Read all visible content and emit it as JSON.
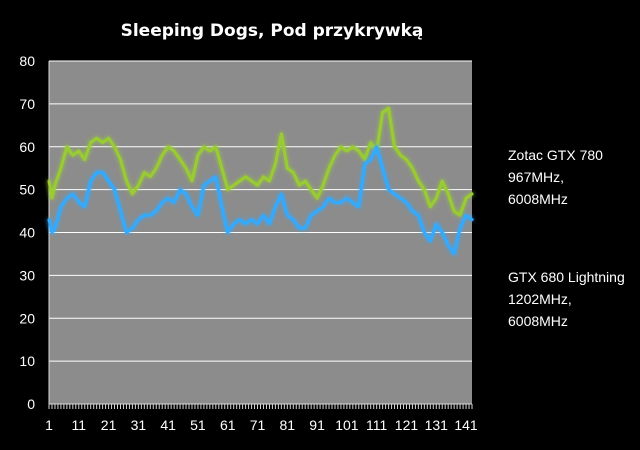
{
  "chart_data": {
    "type": "line",
    "title": "Sleeping Dogs, Pod przykrywką",
    "xlabel": "",
    "ylabel": "",
    "xlim": [
      1,
      143
    ],
    "ylim": [
      0,
      80
    ],
    "y_ticks": [
      "0",
      "10",
      "20",
      "30",
      "40",
      "50",
      "60",
      "70",
      "80"
    ],
    "x_ticks": [
      "1",
      "11",
      "21",
      "31",
      "41",
      "51",
      "61",
      "71",
      "81",
      "91",
      "101",
      "111",
      "121",
      "131",
      "141"
    ],
    "x_tick_values": [
      1,
      11,
      21,
      31,
      41,
      51,
      61,
      71,
      81,
      91,
      101,
      111,
      121,
      131,
      141
    ],
    "grid": true,
    "legend_position": "right",
    "plot_background": "#8c8c8c",
    "series": [
      {
        "name": "Zotac GTX 780 967MHz, 6008MHz",
        "legend_lines": [
          "Zotac GTX 780",
          "967MHz,",
          "6008MHz"
        ],
        "color": "#99cc33",
        "x": [
          1,
          2,
          3,
          5,
          7,
          9,
          11,
          13,
          15,
          17,
          19,
          21,
          23,
          25,
          27,
          29,
          31,
          33,
          35,
          37,
          39,
          41,
          43,
          45,
          47,
          49,
          51,
          53,
          55,
          57,
          59,
          61,
          63,
          65,
          67,
          69,
          71,
          73,
          75,
          77,
          79,
          81,
          83,
          85,
          87,
          89,
          91,
          93,
          95,
          97,
          99,
          101,
          103,
          105,
          107,
          109,
          111,
          113,
          115,
          117,
          119,
          121,
          123,
          125,
          127,
          129,
          131,
          133,
          135,
          137,
          139,
          141,
          143
        ],
        "values": [
          52,
          48,
          51,
          55,
          60,
          58,
          59,
          57,
          61,
          62,
          61,
          62,
          60,
          57,
          52,
          49,
          51,
          54,
          53,
          55,
          58,
          60,
          59,
          57,
          55,
          52,
          58,
          60,
          59,
          60,
          55,
          50,
          51,
          52,
          53,
          52,
          51,
          53,
          52,
          56,
          63,
          55,
          54,
          51,
          52,
          50,
          48,
          51,
          55,
          58,
          60,
          59,
          60,
          59,
          57,
          61,
          59,
          68,
          69,
          60,
          58,
          57,
          55,
          52,
          50,
          46,
          48,
          52,
          49,
          45,
          44,
          48,
          49
        ]
      },
      {
        "name": "GTX 680 Lightning 1202MHz, 6008MHz",
        "legend_lines": [
          "GTX 680 Lightning",
          "1202MHz,",
          "6008MHz"
        ],
        "color": "#33aaff",
        "x": [
          1,
          2,
          3,
          5,
          7,
          9,
          11,
          13,
          15,
          17,
          19,
          21,
          23,
          25,
          27,
          29,
          31,
          33,
          35,
          37,
          39,
          41,
          43,
          45,
          47,
          49,
          51,
          53,
          55,
          57,
          59,
          61,
          63,
          65,
          67,
          69,
          71,
          73,
          75,
          77,
          79,
          81,
          83,
          85,
          87,
          89,
          91,
          93,
          95,
          97,
          99,
          101,
          103,
          105,
          107,
          109,
          111,
          113,
          115,
          117,
          119,
          121,
          123,
          125,
          127,
          129,
          131,
          133,
          135,
          137,
          139,
          141,
          143
        ],
        "values": [
          43,
          40,
          41,
          46,
          48,
          49,
          47,
          46,
          52,
          54,
          54,
          52,
          50,
          45,
          40,
          41,
          43,
          44,
          44,
          45,
          47,
          48,
          47,
          50,
          49,
          46,
          44,
          51,
          52,
          53,
          46,
          40,
          42,
          43,
          42,
          43,
          42,
          44,
          42,
          46,
          49,
          44,
          43,
          41,
          41,
          44,
          45,
          46,
          48,
          47,
          47,
          48,
          47,
          46,
          56,
          57,
          60,
          55,
          50,
          49,
          48,
          47,
          45,
          44,
          40,
          38,
          42,
          40,
          37,
          35,
          41,
          44,
          43
        ]
      }
    ]
  }
}
